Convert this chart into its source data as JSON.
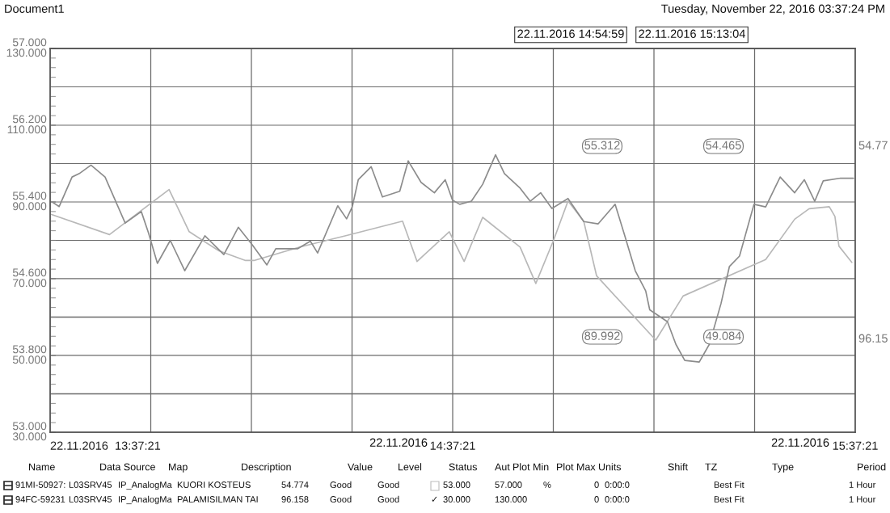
{
  "chart_data": {
    "type": "line",
    "annotations": [
      "Document1",
      "Tuesday, November 22, 2016 03:37:24 PM",
      "22.11.2016 14:54:59",
      "22.11.2016 15:13:04",
      "55.312",
      "54.465",
      "89.992",
      "49.084",
      "54.77",
      "96.15",
      "Name",
      "Data Source",
      "Map",
      "Description",
      "Value",
      "Level",
      "Status",
      "Aut",
      "Plot Min",
      "Plot Max",
      "Units",
      "Shift",
      "TZ",
      "Type",
      "Period",
      "91MI-50927:",
      "L03SRV45",
      "IP_AnalogMa",
      "KUORI KOSTEUS",
      "54.774",
      "Good",
      "Good",
      "53.000",
      "57.000",
      "%",
      "0",
      "0:00:0",
      "Best Fit",
      "1 Hour",
      "94FC-59231",
      "L03SRV45",
      "IP_AnalogMa",
      "PALAMISILMAN TAI",
      "96.158",
      "Good",
      "Good",
      "✓",
      "30.000",
      "130.000",
      "0",
      "0:00:0",
      "Best Fit",
      "1 Hour",
      "22.11.2016",
      "22.11.2016"
    ],
    "series": [
      {
        "color": "#b8b8b8",
        "x": [
          13.626,
          13.77,
          13.918,
          13.968,
          14.042,
          14.108,
          14.129,
          14.243,
          14.359,
          14.498,
          14.534,
          14.614,
          14.651,
          14.697,
          14.79,
          14.829,
          14.873,
          14.909,
          14.948,
          14.98,
          15.127,
          15.195,
          15.4,
          15.472,
          15.508,
          15.558,
          15.572,
          15.582,
          15.614
        ],
        "values": [
          55.27,
          55.06,
          55.53,
          55.09,
          54.89,
          54.79,
          54.79,
          54.93,
          55.05,
          55.2,
          54.78,
          55.09,
          54.78,
          55.24,
          54.93,
          54.55,
          55.0,
          55.41,
          55.2,
          54.63,
          53.96,
          54.42,
          54.8,
          55.22,
          55.33,
          55.35,
          55.25,
          54.94,
          54.77
        ]
      },
      {
        "color": "#8c8c8c",
        "axis": "y2",
        "x": [
          13.626,
          13.645,
          13.677,
          13.695,
          13.724,
          13.759,
          13.809,
          13.849,
          13.867,
          13.889,
          13.921,
          13.957,
          14.007,
          14.054,
          14.09,
          14.125,
          14.161,
          14.183,
          14.237,
          14.269,
          14.287,
          14.337,
          14.359,
          14.373,
          14.388,
          14.42,
          14.448,
          14.491,
          14.512,
          14.544,
          14.577,
          14.604,
          14.622,
          14.64,
          14.669,
          14.697,
          14.729,
          14.751,
          14.79,
          14.815,
          14.841,
          14.869,
          14.909,
          14.948,
          14.984,
          15.026,
          15.048,
          15.076,
          15.102,
          15.112,
          15.156,
          15.177,
          15.199,
          15.235,
          15.26,
          15.289,
          15.31,
          15.335,
          15.371,
          15.4,
          15.436,
          15.472,
          15.496,
          15.522,
          15.543,
          15.586,
          15.618
        ],
        "values": [
          90.1,
          88.8,
          96.5,
          97.4,
          99.6,
          96.5,
          84.5,
          87.5,
          81.9,
          74.0,
          80.0,
          72.1,
          81.2,
          76.3,
          83.4,
          78.8,
          73.6,
          77.8,
          77.8,
          79.8,
          76.7,
          89.0,
          85.6,
          88.7,
          95.8,
          99.2,
          91.3,
          92.8,
          100.7,
          95.1,
          92.4,
          95.8,
          90.5,
          89.4,
          90.2,
          94.6,
          102.3,
          97.4,
          93.6,
          90.2,
          92.4,
          88.3,
          90.9,
          84.9,
          84.3,
          89.4,
          81.9,
          72.1,
          66.8,
          61.9,
          58.8,
          52.9,
          48.7,
          48.3,
          52.9,
          63.5,
          73.2,
          75.9,
          89.4,
          88.7,
          96.5,
          92.4,
          95.8,
          90.2,
          95.5,
          96.2,
          96.2
        ]
      }
    ],
    "xlim": [
      13.6225,
      15.6225
    ],
    "xticks": [
      {
        "value": 13.6225,
        "label": "22.11.2016  13:37:21"
      },
      {
        "value": 13.8725,
        "label": null
      },
      {
        "value": 14.1225,
        "label": null
      },
      {
        "value": 14.3725,
        "label": null
      },
      {
        "value": 14.6225,
        "label": "14:37:21"
      },
      {
        "value": 14.8725,
        "label": null
      },
      {
        "value": 15.1225,
        "label": null
      },
      {
        "value": 15.3725,
        "label": null
      },
      {
        "value": 15.6225,
        "label": "15:37:21"
      }
    ],
    "ylim": [
      53,
      57
    ],
    "yticks": [
      {
        "value": 53,
        "label": "53.000"
      },
      {
        "value": 53.4,
        "label": null
      },
      {
        "value": 53.8,
        "label": "53.800"
      },
      {
        "value": 54.2,
        "label": null
      },
      {
        "value": 54.6,
        "label": "54.600"
      },
      {
        "value": 55.0,
        "label": null
      },
      {
        "value": 55.4,
        "label": "55.400"
      },
      {
        "value": 55.8,
        "label": null
      },
      {
        "value": 56.2,
        "label": "56.200"
      },
      {
        "value": 56.6,
        "label": null
      },
      {
        "value": 57,
        "label": "57.000"
      }
    ],
    "y2lim": [
      30,
      130
    ],
    "y2ticks": [
      {
        "value": 30,
        "label": "30.000"
      },
      {
        "value": 50,
        "label": "50.000"
      },
      {
        "value": 70,
        "label": "70.000"
      },
      {
        "value": 90,
        "label": "90.000"
      },
      {
        "value": 110,
        "label": "110.000"
      },
      {
        "value": 130,
        "label": "130.000"
      }
    ],
    "grid": true
  }
}
